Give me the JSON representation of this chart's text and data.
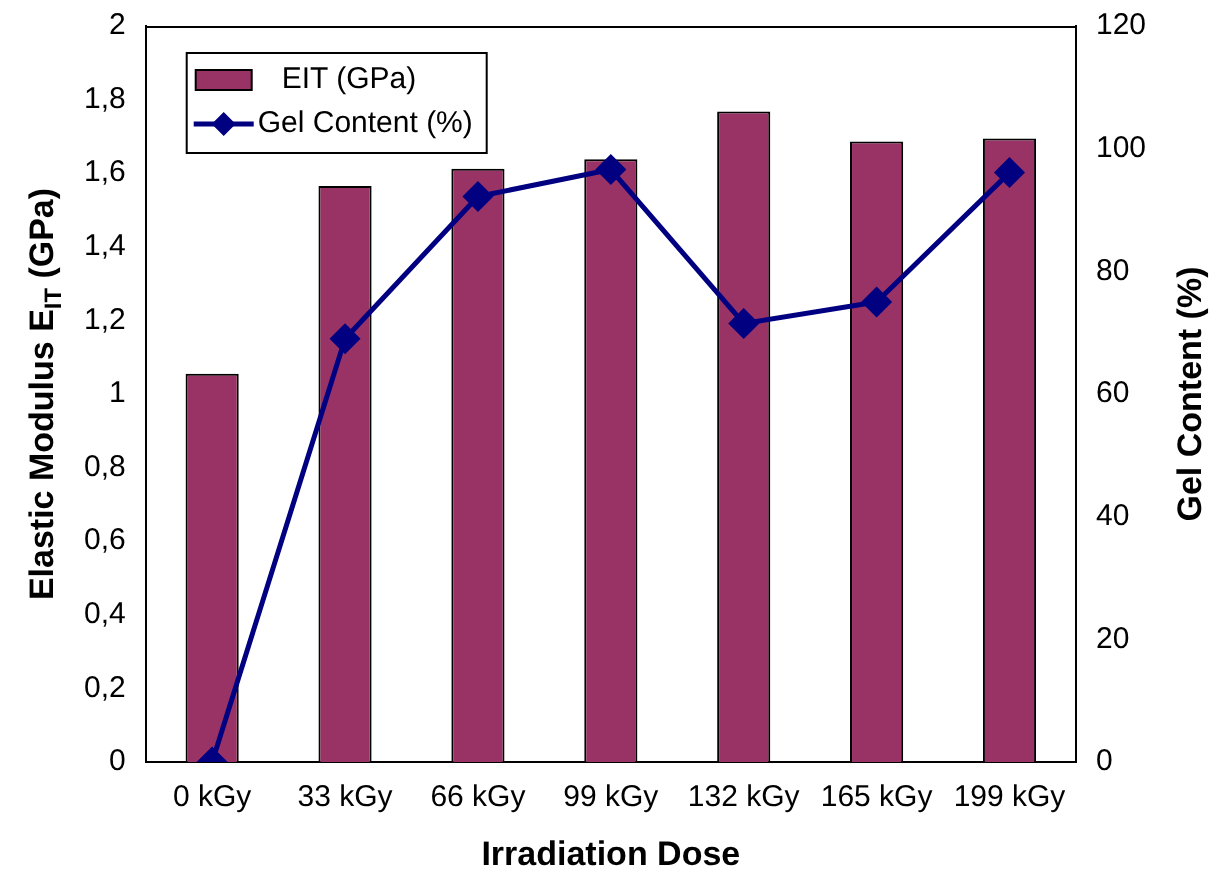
{
  "chart_data": {
    "type": "bar",
    "categories": [
      "0 kGy",
      "33 kGy",
      "66 kGy",
      "99 kGy",
      "132 kGy",
      "165 kGy",
      "199 kGy"
    ],
    "xlabel": "Irradiation Dose",
    "ylabel": "Elastic Modulus E$_{IT}$ (GPa)",
    "y2label": "Gel Content (%)",
    "series": [
      {
        "name": "EIT (GPa)",
        "color": "#993366",
        "values": [
          1.055,
          1.565,
          1.612,
          1.638,
          1.768,
          1.686,
          1.694
        ]
      },
      {
        "name": "Gel Content (%)",
        "type": "line",
        "axis": "y2",
        "color": "#000080",
        "marker": "diamond",
        "values": [
          0,
          69.0,
          92.2,
          96.6,
          71.5,
          75.0,
          96.1
        ]
      }
    ],
    "ylim": [
      0,
      2
    ],
    "yticks": [
      0,
      {
        "value": 0.2,
        "label": "0,2"
      },
      {
        "value": 0.4,
        "label": "0,4"
      },
      {
        "value": 0.6,
        "label": "0,6"
      },
      {
        "value": 0.8,
        "label": "0,8"
      },
      1,
      {
        "value": 1.2,
        "label": "1,2"
      },
      {
        "value": 1.4,
        "label": "1,4"
      },
      {
        "value": 1.6,
        "label": "1,6"
      },
      {
        "value": 1.8,
        "label": "1,8"
      },
      2
    ],
    "y2lim": [
      0,
      120
    ],
    "y2ticks": [
      0,
      20,
      40,
      60,
      80,
      100,
      120
    ],
    "grid": false,
    "legend": "top left"
  }
}
